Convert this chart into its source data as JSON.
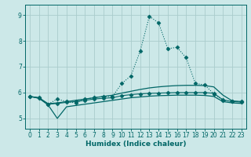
{
  "title": "",
  "xlabel": "Humidex (Indice chaleur)",
  "bg_color": "#cce8e8",
  "grid_color": "#aacccc",
  "line_color": "#006666",
  "xlim": [
    -0.5,
    23.5
  ],
  "ylim": [
    4.6,
    9.4
  ],
  "xticks": [
    0,
    1,
    2,
    3,
    4,
    5,
    6,
    7,
    8,
    9,
    10,
    11,
    12,
    13,
    14,
    15,
    16,
    17,
    18,
    19,
    20,
    21,
    22,
    23
  ],
  "yticks": [
    5,
    6,
    7,
    8,
    9
  ],
  "lines": [
    {
      "x": [
        0,
        1,
        2,
        3,
        4,
        5,
        6,
        7,
        8,
        9,
        10,
        11,
        12,
        13,
        14,
        15,
        16,
        17,
        18,
        19,
        20,
        21,
        22,
        23
      ],
      "y": [
        5.85,
        5.78,
        5.55,
        5.75,
        5.65,
        5.6,
        5.75,
        5.8,
        5.85,
        5.85,
        6.35,
        6.65,
        7.6,
        8.95,
        8.7,
        7.7,
        7.75,
        7.35,
        6.35,
        6.3,
        5.95,
        5.7,
        5.65,
        5.65
      ],
      "marker": "D",
      "markersize": 2.5,
      "linewidth": 0.8,
      "linestyle": ":"
    },
    {
      "x": [
        0,
        1,
        2,
        3,
        4,
        5,
        6,
        7,
        8,
        9,
        10,
        11,
        12,
        13,
        14,
        15,
        16,
        17,
        18,
        19,
        20,
        21,
        22,
        23
      ],
      "y": [
        5.85,
        5.8,
        5.55,
        5.58,
        5.62,
        5.65,
        5.7,
        5.75,
        5.78,
        5.8,
        5.88,
        5.92,
        5.95,
        5.97,
        5.98,
        5.99,
        6.0,
        6.0,
        6.0,
        6.0,
        5.97,
        5.72,
        5.65,
        5.63
      ],
      "marker": "D",
      "markersize": 2.5,
      "linewidth": 0.8,
      "linestyle": "-"
    },
    {
      "x": [
        0,
        1,
        2,
        3,
        4,
        5,
        6,
        7,
        8,
        9,
        10,
        11,
        12,
        13,
        14,
        15,
        16,
        17,
        18,
        19,
        20,
        21,
        22,
        23
      ],
      "y": [
        5.85,
        5.8,
        5.57,
        5.6,
        5.65,
        5.7,
        5.75,
        5.8,
        5.85,
        5.9,
        5.98,
        6.05,
        6.12,
        6.18,
        6.22,
        6.25,
        6.27,
        6.28,
        6.28,
        6.27,
        6.22,
        5.9,
        5.68,
        5.65
      ],
      "marker": null,
      "markersize": 0,
      "linewidth": 0.9,
      "linestyle": "-"
    },
    {
      "x": [
        0,
        1,
        2,
        3,
        4,
        5,
        6,
        7,
        8,
        9,
        10,
        11,
        12,
        13,
        14,
        15,
        16,
        17,
        18,
        19,
        20,
        21,
        22,
        23
      ],
      "y": [
        5.85,
        5.78,
        5.52,
        5.0,
        5.45,
        5.5,
        5.55,
        5.6,
        5.65,
        5.7,
        5.75,
        5.8,
        5.83,
        5.86,
        5.88,
        5.89,
        5.9,
        5.9,
        5.9,
        5.89,
        5.85,
        5.65,
        5.6,
        5.58
      ],
      "marker": null,
      "markersize": 0,
      "linewidth": 0.9,
      "linestyle": "-"
    }
  ]
}
